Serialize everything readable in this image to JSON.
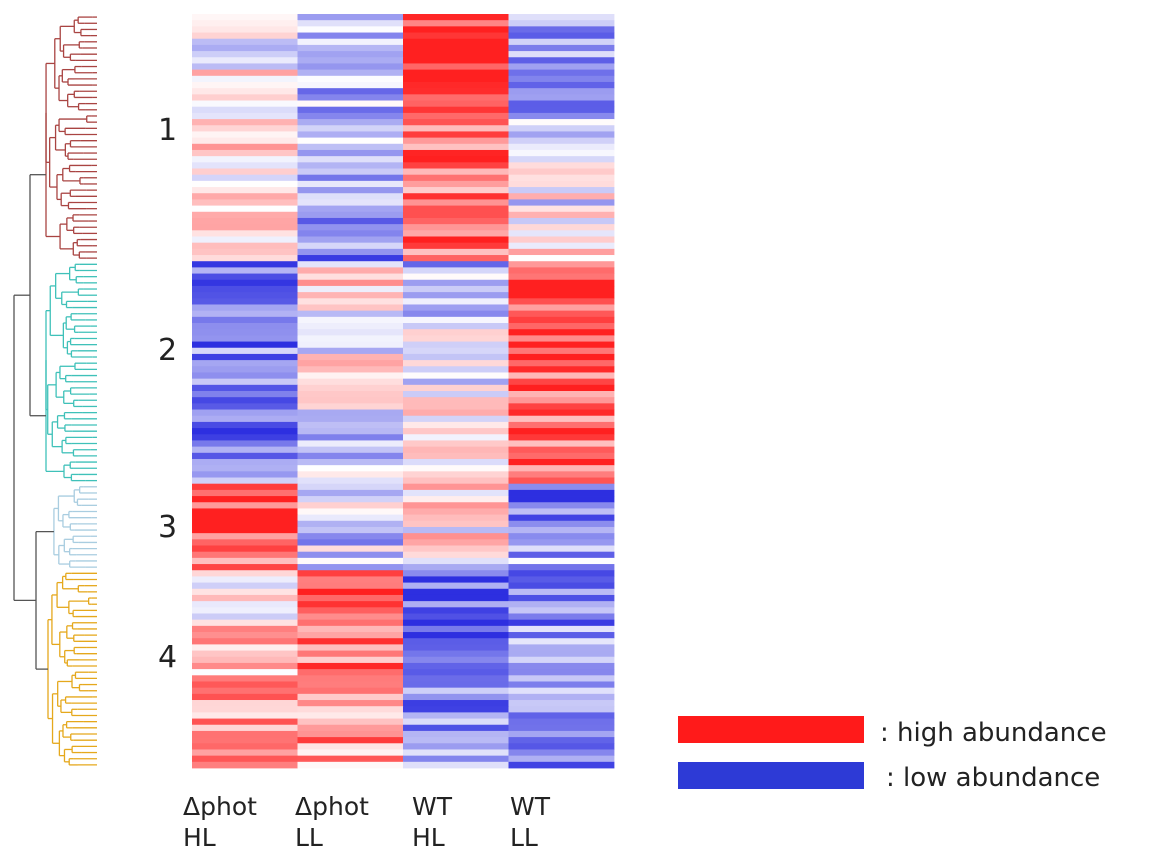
{
  "chart_data": {
    "type": "heatmap",
    "title": "",
    "columns": [
      {
        "line1": "Δphot",
        "line2": "HL"
      },
      {
        "line1": "Δphot",
        "line2": "LL"
      },
      {
        "line1": "WT",
        "line2": "HL"
      },
      {
        "line1": "WT",
        "line2": "LL"
      }
    ],
    "clusters": [
      {
        "label": "1",
        "color": "#a94442",
        "rows": 40
      },
      {
        "label": "2",
        "color": "#3fc1b9",
        "rows": 36
      },
      {
        "label": "3",
        "color": "#a9cde0",
        "rows": 14
      },
      {
        "label": "4",
        "color": "#e5a81c",
        "rows": 32
      }
    ],
    "row_count": 122,
    "value_range": [
      -1,
      1
    ],
    "color_scale": {
      "low": "#2d2fe0",
      "mid": "#ffffff",
      "high": "#ff2020"
    },
    "cluster_profiles": [
      [
        [
          -0.1,
          0.3
        ],
        [
          -0.3,
          -0.5
        ],
        [
          0.85,
          0.6
        ],
        [
          -0.6,
          0.1
        ]
      ],
      [
        [
          -0.6,
          -0.65
        ],
        [
          0.2,
          -0.3
        ],
        [
          -0.4,
          0.3
        ],
        [
          0.8,
          0.6
        ]
      ],
      [
        [
          0.85,
          0.7
        ],
        [
          -0.2,
          -0.3
        ],
        [
          0.3,
          -0.1
        ],
        [
          -0.75,
          -0.3
        ]
      ],
      [
        [
          0.1,
          0.5
        ],
        [
          0.8,
          0.45
        ],
        [
          -0.7,
          -0.55
        ],
        [
          -0.5,
          -0.6
        ]
      ]
    ],
    "legend": [
      {
        "label": ": high abundance",
        "color": "#ff1a1a"
      },
      {
        "label": ": low abundance",
        "color": "#2d3ad6"
      }
    ],
    "dendrogram_colors": {
      "root": "#555555"
    }
  }
}
